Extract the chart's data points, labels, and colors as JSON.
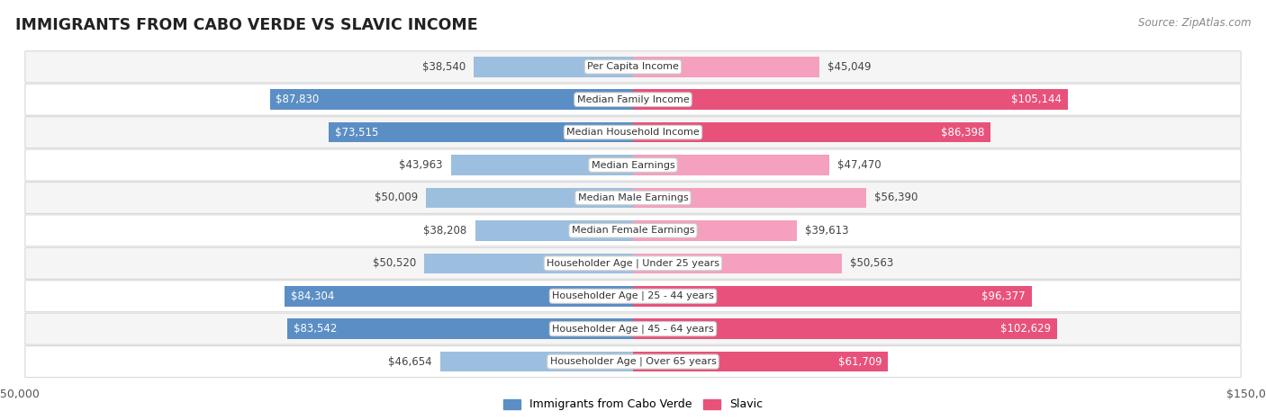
{
  "title": "IMMIGRANTS FROM CABO VERDE VS SLAVIC INCOME",
  "source": "Source: ZipAtlas.com",
  "categories": [
    "Per Capita Income",
    "Median Family Income",
    "Median Household Income",
    "Median Earnings",
    "Median Male Earnings",
    "Median Female Earnings",
    "Householder Age | Under 25 years",
    "Householder Age | 25 - 44 years",
    "Householder Age | 45 - 64 years",
    "Householder Age | Over 65 years"
  ],
  "cabo_verde": [
    38540,
    87830,
    73515,
    43963,
    50009,
    38208,
    50520,
    84304,
    83542,
    46654
  ],
  "slavic": [
    45049,
    105144,
    86398,
    47470,
    56390,
    39613,
    50563,
    96377,
    102629,
    61709
  ],
  "cabo_verde_color_strong": "#5b8ec4",
  "cabo_verde_color_light": "#9dbfdf",
  "slavic_color_strong": "#e8527a",
  "slavic_color_light": "#f4a0be",
  "max_val": 150000,
  "bar_height": 0.62,
  "row_bg_colors": [
    "#f5f5f5",
    "#ffffff"
  ],
  "row_border_color": "#d8d8d8",
  "legend_cabo_verde": "Immigrants from Cabo Verde",
  "legend_slavic": "Slavic",
  "threshold_strong": 60000,
  "label_fontsize": 8.5,
  "cat_fontsize": 8.0
}
